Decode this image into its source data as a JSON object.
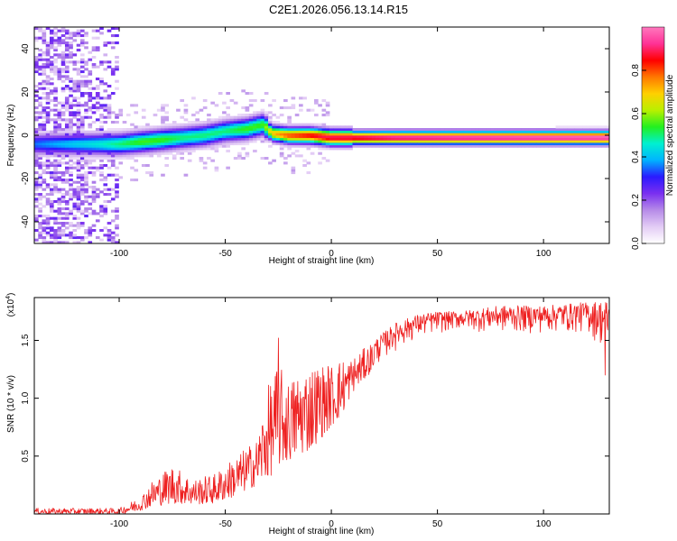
{
  "title": "C2E1.2026.056.13.14.R15",
  "chart_data": [
    {
      "type": "heatmap",
      "panel": "top",
      "xlabel": "Height of straight line (km)",
      "ylabel": "Frequency (Hz)",
      "xlim": [
        -140,
        131
      ],
      "ylim": [
        -50,
        50
      ],
      "xticks": [
        -100,
        -50,
        0,
        50,
        100
      ],
      "yticks": [
        -40,
        -20,
        0,
        20,
        40
      ],
      "colorbar": {
        "label": "Normalized spectral amplitude",
        "range": [
          0,
          1
        ],
        "ticks": [
          "0.0",
          "0.2",
          "0.4",
          "0.6",
          "0.8"
        ],
        "tick_values": [
          0.0,
          0.2,
          0.4,
          0.6,
          0.8
        ],
        "colormap": [
          "#ffffff",
          "#e3ccf5",
          "#b68be8",
          "#7a2ff0",
          "#2a1aff",
          "#00b4ff",
          "#00f0d0",
          "#22f020",
          "#b8f000",
          "#ffd000",
          "#ff7800",
          "#ff0000",
          "#ff3296",
          "#ff78be"
        ]
      },
      "ridge": [
        {
          "x": -140,
          "freq": -4,
          "amp": 0.35
        },
        {
          "x": -110,
          "freq": -4,
          "amp": 0.45
        },
        {
          "x": -100,
          "freq": -4,
          "amp": 0.5
        },
        {
          "x": -90,
          "freq": -3,
          "amp": 0.55
        },
        {
          "x": -80,
          "freq": -2,
          "amp": 0.55
        },
        {
          "x": -70,
          "freq": -1,
          "amp": 0.5
        },
        {
          "x": -60,
          "freq": 0,
          "amp": 0.5
        },
        {
          "x": -50,
          "freq": 2,
          "amp": 0.5
        },
        {
          "x": -40,
          "freq": 3,
          "amp": 0.55
        },
        {
          "x": -32,
          "freq": 5,
          "amp": 0.55
        },
        {
          "x": -28,
          "freq": 1,
          "amp": 0.7
        },
        {
          "x": -20,
          "freq": 0,
          "amp": 0.8
        },
        {
          "x": -10,
          "freq": 0,
          "amp": 0.85
        },
        {
          "x": 0,
          "freq": -1,
          "amp": 0.9
        },
        {
          "x": 10,
          "freq": -1,
          "amp": 0.9
        },
        {
          "x": 30,
          "freq": -1,
          "amp": 0.95
        },
        {
          "x": 60,
          "freq": -1,
          "amp": 0.97
        },
        {
          "x": 100,
          "freq": -1,
          "amp": 0.99
        },
        {
          "x": 131,
          "freq": -1,
          "amp": 1.0
        }
      ],
      "noise_region_x": [
        -140,
        -100
      ]
    },
    {
      "type": "line",
      "panel": "bottom",
      "xlabel": "Height of straight line (km)",
      "ylabel": "SNR (10 * v/v)",
      "scale_label": "(x10",
      "scale_exponent": "4",
      "scale_close": ")",
      "xlim": [
        -140,
        131
      ],
      "ylim": [
        0,
        18700
      ],
      "xticks": [
        -100,
        -50,
        0,
        50,
        100
      ],
      "yticks": [
        0.5,
        1.0,
        1.5
      ],
      "ytick_labels": [
        "0.5",
        "1.0",
        "1.5"
      ],
      "color": "#ee2020",
      "series": [
        {
          "name": "SNR",
          "envelope": [
            {
              "x": -140,
              "low": 0,
              "high": 500
            },
            {
              "x": -100,
              "low": 0,
              "high": 500
            },
            {
              "x": -95,
              "low": 100,
              "high": 1000
            },
            {
              "x": -90,
              "low": 300,
              "high": 1500
            },
            {
              "x": -85,
              "low": 600,
              "high": 2800
            },
            {
              "x": -75,
              "low": 900,
              "high": 4300
            },
            {
              "x": -65,
              "low": 800,
              "high": 3000
            },
            {
              "x": -55,
              "low": 900,
              "high": 3500
            },
            {
              "x": -45,
              "low": 1500,
              "high": 5000
            },
            {
              "x": -35,
              "low": 2500,
              "high": 6500
            },
            {
              "x": -30,
              "low": 3000,
              "high": 11000
            },
            {
              "x": -25,
              "low": 4000,
              "high": 13000
            },
            {
              "x": -20,
              "low": 4500,
              "high": 11500
            },
            {
              "x": -15,
              "low": 5000,
              "high": 12500
            },
            {
              "x": -10,
              "low": 5500,
              "high": 13000
            },
            {
              "x": -5,
              "low": 6500,
              "high": 13000
            },
            {
              "x": 0,
              "low": 7500,
              "high": 13000
            },
            {
              "x": 5,
              "low": 8500,
              "high": 13500
            },
            {
              "x": 10,
              "low": 10500,
              "high": 13500
            },
            {
              "x": 20,
              "low": 12500,
              "high": 15000
            },
            {
              "x": 30,
              "low": 14000,
              "high": 16500
            },
            {
              "x": 40,
              "low": 15000,
              "high": 17200
            },
            {
              "x": 50,
              "low": 15500,
              "high": 17500
            },
            {
              "x": 60,
              "low": 15800,
              "high": 17500
            },
            {
              "x": 80,
              "low": 15500,
              "high": 18000
            },
            {
              "x": 100,
              "low": 15500,
              "high": 18000
            },
            {
              "x": 120,
              "low": 15500,
              "high": 18300
            },
            {
              "x": 131,
              "low": 13500,
              "high": 18500
            }
          ],
          "spikes": [
            {
              "x": -25,
              "value": 15200
            },
            {
              "x": 129,
              "value": 12000
            }
          ]
        }
      ]
    }
  ]
}
